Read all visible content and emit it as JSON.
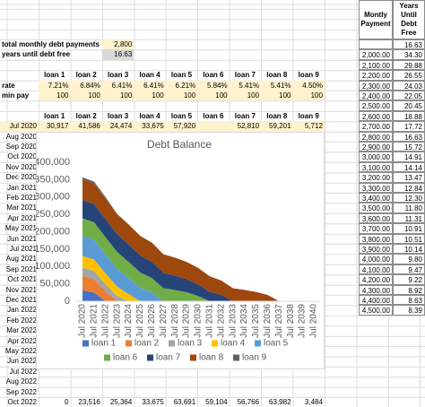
{
  "sheet": {
    "summary": [
      {
        "label": "total monthly debt payments",
        "value": "2,800"
      },
      {
        "label": "years until debt free",
        "value": "16.63"
      }
    ],
    "loan_names": [
      "loan 1",
      "loan 2",
      "loan 3",
      "loan 4",
      "loan 5",
      "loan 6",
      "loan 7",
      "loan 8",
      "loan 9"
    ],
    "rate_label": "rate",
    "rates": [
      "7.21%",
      "6.84%",
      "6.41%",
      "6.41%",
      "6.21%",
      "5.84%",
      "5.41%",
      "5.41%",
      "4.50%"
    ],
    "min_pay_label": "min pay",
    "min_pays": [
      "100",
      "100",
      "100",
      "100",
      "100",
      "100",
      "100",
      "100",
      "100"
    ],
    "dates": [
      "Jul 2020",
      "Aug 2020",
      "Sep 2020",
      "Oct 2020",
      "Nov 2020",
      "Dec 2020",
      "Jan 2021",
      "Feb 2021",
      "Mar 2021",
      "Apr 2021",
      "May 2021",
      "Jun 2021",
      "Jul 2021",
      "Aug 2021",
      "Sep 2021",
      "Oct 2021",
      "Nov 2021",
      "Dec 2021",
      "Jan 2022",
      "Feb 2022",
      "Mar 2022",
      "Apr 2022",
      "May 2022",
      "Jun 2022",
      "Jul 2022",
      "Aug 2022",
      "Sep 2022",
      "Oct 2022"
    ],
    "first_row": [
      "30,917",
      "41,586",
      "24,474",
      "33,675",
      "57,920",
      null,
      "52,810",
      "59,201",
      "5,712"
    ],
    "last_row": [
      "0",
      "23,516",
      "25,364",
      "33,675",
      "63,691",
      "59,104",
      "56,766",
      "63,982",
      "3,484"
    ],
    "payoff_table": {
      "headers": [
        "Montly Payment",
        "Years Until Debt Free"
      ],
      "first_years": "16.63",
      "rows": [
        [
          "2,000.00",
          "34.30"
        ],
        [
          "2,100.00",
          "29.88"
        ],
        [
          "2,200.00",
          "26.55"
        ],
        [
          "2,300.00",
          "24.03"
        ],
        [
          "2,400.00",
          "22.05"
        ],
        [
          "2,500.00",
          "20.45"
        ],
        [
          "2,600.00",
          "18.88"
        ],
        [
          "2,700.00",
          "17.72"
        ],
        [
          "2,800.00",
          "16.63"
        ],
        [
          "2,900.00",
          "15.72"
        ],
        [
          "3,000.00",
          "14.91"
        ],
        [
          "3,100.00",
          "14.14"
        ],
        [
          "3,200.00",
          "13.47"
        ],
        [
          "3,300.00",
          "12.84"
        ],
        [
          "3,400.00",
          "12.30"
        ],
        [
          "3,500.00",
          "11.80"
        ],
        [
          "3,600.00",
          "11.31"
        ],
        [
          "3,700.00",
          "10.91"
        ],
        [
          "3,800.00",
          "10.51"
        ],
        [
          "3,900.00",
          "10.14"
        ],
        [
          "4,000.00",
          "9.80"
        ],
        [
          "4,100.00",
          "9.47"
        ],
        [
          "4,200.00",
          "9.22"
        ],
        [
          "4,300.00",
          "8.92"
        ],
        [
          "4,400.00",
          "8.63"
        ],
        [
          "4,500.00",
          "8.39"
        ]
      ]
    }
  },
  "chart_data": {
    "type": "stacked_area",
    "title": "Debt Balance",
    "categories": [
      "Jul 2020",
      "Jul 2021",
      "Jul 2022",
      "Jul 2023",
      "Jul 2024",
      "Jul 2025",
      "Jul 2026",
      "Jul 2027",
      "Jul 2028",
      "Jul 2029",
      "Jul 2030",
      "Jul 2031",
      "Jul 2032",
      "Jul 2033",
      "Jul 2034",
      "Jul 2035",
      "Jul 2036",
      "Jul 2037",
      "Jul 2038",
      "Jul 2039",
      "Jul 2040"
    ],
    "ylim": [
      0,
      400000
    ],
    "yticks": [
      0,
      {
        "value": 50000,
        "label": "50,000"
      },
      {
        "value": 100000,
        "label": "100,000"
      },
      {
        "value": 150000,
        "label": "150,000"
      },
      {
        "value": 200000,
        "label": "200,000"
      },
      {
        "value": 250000,
        "label": "250,000"
      },
      {
        "value": 300000,
        "label": "300,000"
      },
      {
        "value": 350000,
        "label": "350,000"
      },
      {
        "value": 400000,
        "label": "400,000"
      }
    ],
    "grid": false,
    "legend": "bottom",
    "series": [
      {
        "name": "loan 1",
        "color": "#4472c4",
        "values": [
          30917,
          25000,
          0,
          0,
          0,
          0,
          0,
          0,
          0,
          0,
          0,
          0,
          0,
          0,
          0,
          0,
          0,
          0,
          0,
          0,
          0
        ]
      },
      {
        "name": "loan 2",
        "color": "#ed7d31",
        "values": [
          41586,
          38600,
          27900,
          0,
          0,
          0,
          0,
          0,
          0,
          0,
          0,
          0,
          0,
          0,
          0,
          0,
          0,
          0,
          0,
          0,
          0
        ]
      },
      {
        "name": "loan 3",
        "color": "#a5a5a5",
        "values": [
          24474,
          23600,
          20800,
          15000,
          0,
          0,
          0,
          0,
          0,
          0,
          0,
          0,
          0,
          0,
          0,
          0,
          0,
          0,
          0,
          0,
          0
        ]
      },
      {
        "name": "loan 4",
        "color": "#ffc000",
        "values": [
          33675,
          33000,
          30900,
          26900,
          20200,
          0,
          0,
          0,
          0,
          0,
          0,
          0,
          0,
          0,
          0,
          0,
          0,
          0,
          0,
          0,
          0
        ]
      },
      {
        "name": "loan 5",
        "color": "#5b9bd5",
        "values": [
          57920,
          57300,
          55300,
          51800,
          46500,
          38600,
          25800,
          0,
          0,
          0,
          0,
          0,
          0,
          0,
          0,
          0,
          0,
          0,
          0,
          0,
          0
        ]
      },
      {
        "name": "loan 6",
        "color": "#70ad47",
        "values": [
          50000,
          49800,
          49100,
          47900,
          46200,
          44000,
          41000,
          37300,
          32400,
          25700,
          15200,
          0,
          0,
          0,
          0,
          0,
          0,
          0,
          0,
          0,
          0
        ]
      },
      {
        "name": "loan 7",
        "color": "#264478",
        "values": [
          52810,
          52600,
          52100,
          51300,
          50200,
          48600,
          46600,
          44200,
          41200,
          37600,
          33000,
          27000,
          18400,
          0,
          0,
          0,
          0,
          0,
          0,
          0,
          0
        ]
      },
      {
        "name": "loan 8",
        "color": "#9e480e",
        "values": [
          59201,
          59100,
          58800,
          58200,
          57500,
          56500,
          55300,
          53800,
          52000,
          50000,
          47600,
          44700,
          41400,
          37500,
          32700,
          26700,
          18000,
          0,
          0,
          0,
          0
        ]
      },
      {
        "name": "loan 9",
        "color": "#636363",
        "values": [
          5712,
          5400,
          4300,
          0,
          0,
          0,
          0,
          0,
          0,
          0,
          0,
          0,
          0,
          0,
          0,
          0,
          0,
          0,
          0,
          0,
          0
        ]
      }
    ]
  }
}
